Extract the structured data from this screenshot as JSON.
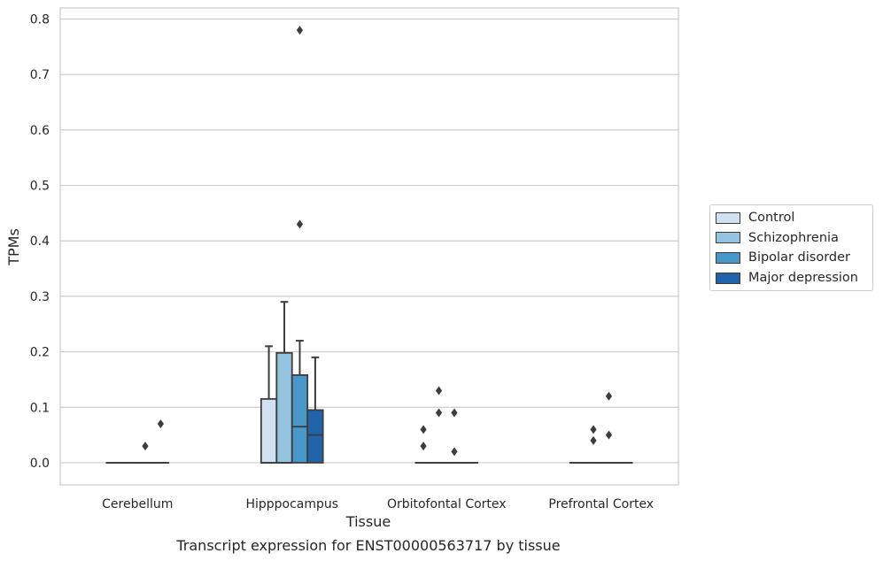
{
  "chart_data": {
    "type": "box",
    "xlabel": "Tissue",
    "ylabel": "TPMs",
    "caption": "Transcript expression for ENST00000563717 by tissue",
    "ylim": [
      -0.04,
      0.82
    ],
    "yticks": [
      0.0,
      0.1,
      0.2,
      0.3,
      0.4,
      0.5,
      0.6,
      0.7,
      0.8
    ],
    "categories": [
      "Cerebellum",
      "Hipppocampus",
      "Orbitofontal Cortex",
      "Prefrontal Cortex"
    ],
    "grid": true,
    "legend_position": "right",
    "series": [
      {
        "name": "Control",
        "color": "#d0e1f2",
        "boxes": [
          {
            "q1": 0,
            "median": 0,
            "q3": 0,
            "whisker_low": 0,
            "whisker_high": 0,
            "outliers": []
          },
          {
            "q1": 0,
            "median": 0,
            "q3": 0.115,
            "whisker_low": 0,
            "whisker_high": 0.21,
            "outliers": []
          },
          {
            "q1": 0,
            "median": 0,
            "q3": 0,
            "whisker_low": 0,
            "whisker_high": 0,
            "outliers": [
              0.06,
              0.03
            ]
          },
          {
            "q1": 0,
            "median": 0,
            "q3": 0,
            "whisker_low": 0,
            "whisker_high": 0,
            "outliers": []
          }
        ]
      },
      {
        "name": "Schizophrenia",
        "color": "#94c4df",
        "boxes": [
          {
            "q1": 0,
            "median": 0,
            "q3": 0,
            "whisker_low": 0,
            "whisker_high": 0,
            "outliers": []
          },
          {
            "q1": 0,
            "median": 0,
            "q3": 0.198,
            "whisker_low": 0,
            "whisker_high": 0.29,
            "outliers": []
          },
          {
            "q1": 0,
            "median": 0,
            "q3": 0,
            "whisker_low": 0,
            "whisker_high": 0,
            "outliers": [
              0.13,
              0.09
            ]
          },
          {
            "q1": 0,
            "median": 0,
            "q3": 0,
            "whisker_low": 0,
            "whisker_high": 0,
            "outliers": [
              0.06,
              0.04
            ]
          }
        ]
      },
      {
        "name": "Bipolar disorder",
        "color": "#4a98c9",
        "boxes": [
          {
            "q1": 0,
            "median": 0,
            "q3": 0,
            "whisker_low": 0,
            "whisker_high": 0,
            "outliers": [
              0.03
            ]
          },
          {
            "q1": 0,
            "median": 0.065,
            "q3": 0.158,
            "whisker_low": 0,
            "whisker_high": 0.22,
            "outliers": [
              0.78,
              0.43
            ]
          },
          {
            "q1": 0,
            "median": 0,
            "q3": 0,
            "whisker_low": 0,
            "whisker_high": 0,
            "outliers": [
              0.09,
              0.02
            ]
          },
          {
            "q1": 0,
            "median": 0,
            "q3": 0,
            "whisker_low": 0,
            "whisker_high": 0,
            "outliers": [
              0.12,
              0.05
            ]
          }
        ]
      },
      {
        "name": "Major depression",
        "color": "#2163aa",
        "boxes": [
          {
            "q1": 0,
            "median": 0,
            "q3": 0,
            "whisker_low": 0,
            "whisker_high": 0,
            "outliers": [
              0.07
            ]
          },
          {
            "q1": 0,
            "median": 0.05,
            "q3": 0.095,
            "whisker_low": 0,
            "whisker_high": 0.19,
            "outliers": []
          },
          {
            "q1": 0,
            "median": 0,
            "q3": 0,
            "whisker_low": 0,
            "whisker_high": 0,
            "outliers": []
          },
          {
            "q1": 0,
            "median": 0,
            "q3": 0,
            "whisker_low": 0,
            "whisker_high": 0,
            "outliers": []
          }
        ]
      }
    ]
  }
}
